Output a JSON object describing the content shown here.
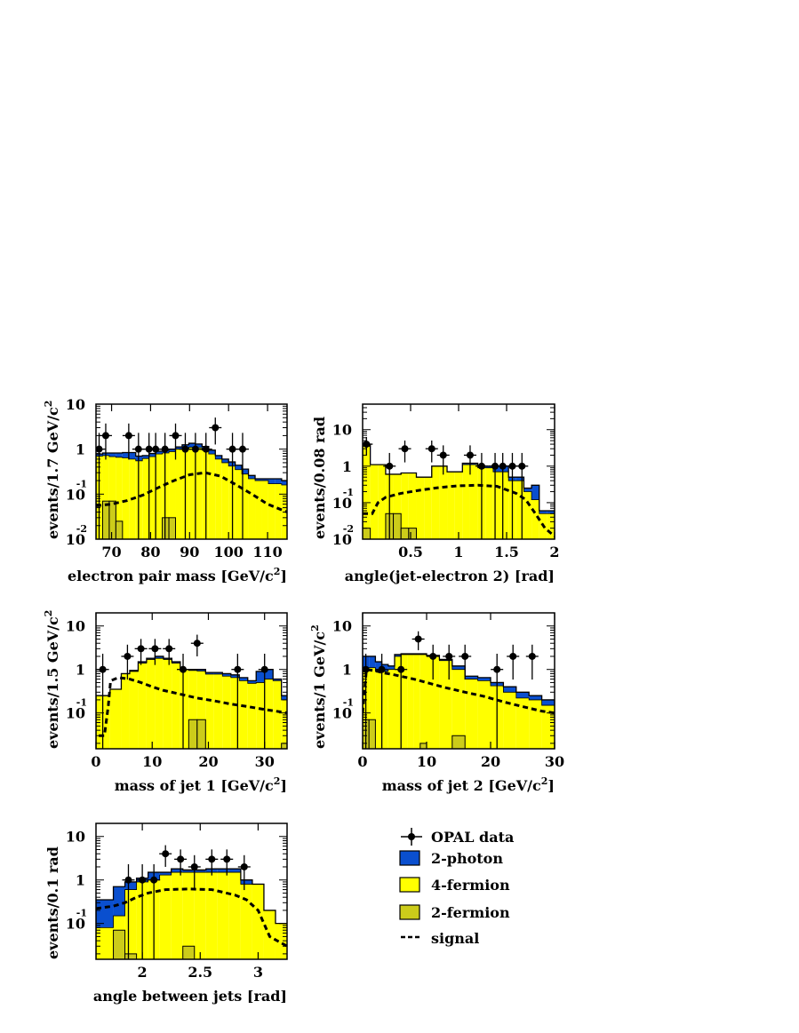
{
  "colors": {
    "two_photon": "#0a4fcf",
    "four_fermion": "#ffff00",
    "two_fermion": "#cccc1a",
    "signal": "#000000",
    "data": "#000000"
  },
  "legend": {
    "data": "OPAL data",
    "two_photon": "2-photon",
    "four_fermion": "4-fermion",
    "two_fermion": "2-fermion",
    "signal": "signal"
  },
  "chart_data": [
    {
      "type": "bar",
      "xlabel": "electron pair mass [GeV/c",
      "xlabel_sup": "2",
      "xlabel_end": "]",
      "ylabel": "events/1.7 GeV/c",
      "ylabel_sup": "2",
      "yscale": "log",
      "xlim": [
        66,
        115
      ],
      "ylim": [
        0.01,
        10
      ],
      "xticks": [
        70,
        80,
        90,
        100,
        110
      ],
      "xticklabels": [
        "70",
        "80",
        "90",
        "100",
        "110"
      ],
      "yticks": [
        {
          "v": 10,
          "m": "10",
          "e": ""
        },
        {
          "v": 1,
          "m": "1",
          "e": ""
        },
        {
          "v": 0.1,
          "m": "10",
          "e": "-1"
        },
        {
          "v": 0.01,
          "m": "10",
          "e": "-2"
        }
      ],
      "bin_edges": [
        66,
        67.7,
        69.4,
        71.1,
        72.8,
        74.5,
        76.2,
        77.9,
        79.6,
        81.3,
        83.0,
        84.7,
        86.4,
        88.1,
        89.8,
        91.5,
        93.2,
        94.9,
        96.6,
        98.3,
        100.0,
        101.7,
        103.4,
        105.1,
        106.8,
        108.5,
        110.2,
        111.9,
        113.6,
        115.3
      ],
      "four_fermion_top": [
        0.7,
        0.72,
        0.68,
        0.66,
        0.64,
        0.6,
        0.55,
        0.62,
        0.68,
        0.78,
        0.82,
        0.88,
        1.0,
        1.05,
        1.1,
        1.08,
        0.95,
        0.78,
        0.6,
        0.5,
        0.42,
        0.35,
        0.28,
        0.22,
        0.2,
        0.2,
        0.17,
        0.17,
        0.16
      ],
      "total_top": [
        0.78,
        0.82,
        0.82,
        0.82,
        0.84,
        0.84,
        0.7,
        0.72,
        0.8,
        0.9,
        0.95,
        1.0,
        1.12,
        1.25,
        1.35,
        1.3,
        1.15,
        0.95,
        0.72,
        0.6,
        0.52,
        0.44,
        0.36,
        0.26,
        0.22,
        0.22,
        0.22,
        0.22,
        0.2
      ],
      "two_fermion": [
        0,
        0.07,
        0.07,
        0.025,
        0,
        0,
        0,
        0,
        0,
        0,
        0.03,
        0.03,
        0,
        0,
        0,
        0,
        0,
        0,
        0,
        0,
        0,
        0,
        0,
        0,
        0,
        0,
        0,
        0,
        0
      ],
      "signal_x": [
        66,
        70,
        74,
        78,
        82,
        86,
        90,
        94,
        98,
        102,
        106,
        110,
        115
      ],
      "signal_y": [
        0.055,
        0.06,
        0.072,
        0.095,
        0.14,
        0.2,
        0.27,
        0.3,
        0.25,
        0.16,
        0.1,
        0.06,
        0.04
      ],
      "data_points": [
        {
          "x": 66.8,
          "y": 1
        },
        {
          "x": 68.5,
          "y": 2
        },
        {
          "x": 74.4,
          "y": 2
        },
        {
          "x": 76.9,
          "y": 1
        },
        {
          "x": 79.6,
          "y": 1
        },
        {
          "x": 81.3,
          "y": 1
        },
        {
          "x": 83.7,
          "y": 1
        },
        {
          "x": 86.4,
          "y": 2
        },
        {
          "x": 88.9,
          "y": 1
        },
        {
          "x": 91.5,
          "y": 1
        },
        {
          "x": 94.2,
          "y": 1
        },
        {
          "x": 96.6,
          "y": 3
        },
        {
          "x": 101.0,
          "y": 1
        },
        {
          "x": 103.6,
          "y": 1
        }
      ]
    },
    {
      "type": "bar",
      "xlabel": "angle(jet-electron 2) [rad]",
      "ylabel": "events/0.08 rad",
      "yscale": "log",
      "xlim": [
        0,
        2
      ],
      "ylim": [
        0.01,
        50
      ],
      "xticks": [
        0.5,
        1,
        1.5,
        2
      ],
      "xticklabels": [
        "0.5",
        "1",
        "1.5",
        "2"
      ],
      "yticks": [
        {
          "v": 10,
          "m": "10",
          "e": ""
        },
        {
          "v": 1,
          "m": "1",
          "e": ""
        },
        {
          "v": 0.1,
          "m": "10",
          "e": "-1"
        },
        {
          "v": 0.01,
          "m": "10",
          "e": "-2"
        }
      ],
      "bin_edges": [
        0,
        0.08,
        0.16,
        0.24,
        0.32,
        0.4,
        0.48,
        0.56,
        0.64,
        0.72,
        0.8,
        0.88,
        0.96,
        1.04,
        1.12,
        1.2,
        1.28,
        1.36,
        1.44,
        1.52,
        1.6,
        1.68,
        1.76,
        1.84,
        1.92,
        2.0
      ],
      "four_fermion_top": [
        3.5,
        1.1,
        1.1,
        0.6,
        0.6,
        0.65,
        0.65,
        0.5,
        0.5,
        1.0,
        1.0,
        0.7,
        0.7,
        1.1,
        1.1,
        0.9,
        0.9,
        0.7,
        0.7,
        0.4,
        0.4,
        0.2,
        0.12,
        0.05,
        0.05
      ],
      "total_top": [
        4.0,
        1.1,
        1.1,
        0.6,
        0.6,
        0.65,
        0.65,
        0.5,
        0.5,
        1.0,
        1.0,
        0.7,
        0.7,
        1.2,
        1.2,
        1.0,
        1.0,
        1.0,
        1.0,
        0.5,
        0.5,
        0.25,
        0.3,
        0.06,
        0.06
      ],
      "two_fermion": [
        0.02,
        0,
        0,
        0.05,
        0.05,
        0.02,
        0.02,
        0,
        0,
        0,
        0,
        0,
        0,
        0,
        0,
        0,
        0,
        0,
        0,
        0,
        0,
        0,
        0,
        0,
        0
      ],
      "signal_x": [
        0,
        0.1,
        0.16,
        0.24,
        0.4,
        0.6,
        0.8,
        1.0,
        1.2,
        1.4,
        1.6,
        1.7,
        1.8,
        1.9,
        2.0
      ],
      "signal_y": [
        0.05,
        0.05,
        0.1,
        0.14,
        0.18,
        0.22,
        0.26,
        0.29,
        0.3,
        0.28,
        0.18,
        0.12,
        0.05,
        0.02,
        0.012
      ],
      "data_points": [
        {
          "x": 0.04,
          "y": 4
        },
        {
          "x": 0.28,
          "y": 1
        },
        {
          "x": 0.44,
          "y": 3
        },
        {
          "x": 0.72,
          "y": 3
        },
        {
          "x": 0.84,
          "y": 2
        },
        {
          "x": 1.12,
          "y": 2
        },
        {
          "x": 1.24,
          "y": 1
        },
        {
          "x": 1.38,
          "y": 1
        },
        {
          "x": 1.46,
          "y": 1
        },
        {
          "x": 1.56,
          "y": 1
        },
        {
          "x": 1.66,
          "y": 1
        }
      ]
    },
    {
      "type": "bar",
      "xlabel": "mass of jet 1 [GeV/c",
      "xlabel_sup": "2",
      "xlabel_end": "]",
      "ylabel": "events/1.5 GeV/c",
      "ylabel_sup": "2",
      "yscale": "log",
      "xlim": [
        0,
        34
      ],
      "ylim": [
        0.015,
        20
      ],
      "xticks": [
        0,
        10,
        20,
        30
      ],
      "xticklabels": [
        "0",
        "10",
        "20",
        "30"
      ],
      "yticks": [
        {
          "v": 10,
          "m": "10",
          "e": ""
        },
        {
          "v": 1,
          "m": "1",
          "e": ""
        },
        {
          "v": 0.1,
          "m": "10",
          "e": "-1"
        }
      ],
      "bin_edges": [
        0,
        2.5,
        4.5,
        6.0,
        7.5,
        9.0,
        10.5,
        12.0,
        13.5,
        15.0,
        16.5,
        18.0,
        19.5,
        21.0,
        22.5,
        24.0,
        25.5,
        27.0,
        28.5,
        30.0,
        31.5,
        33.0,
        34.0
      ],
      "four_fermion_top": [
        0.25,
        0.35,
        0.8,
        0.9,
        1.4,
        1.7,
        1.8,
        1.7,
        1.4,
        1.0,
        0.95,
        0.92,
        0.78,
        0.78,
        0.7,
        0.65,
        0.55,
        0.48,
        0.5,
        0.6,
        0.55,
        0.2
      ],
      "total_top": [
        0.25,
        0.35,
        0.8,
        0.95,
        1.5,
        1.8,
        2.0,
        1.8,
        1.5,
        1.0,
        1.0,
        1.0,
        0.85,
        0.85,
        0.8,
        0.75,
        0.65,
        0.55,
        0.9,
        1.0,
        0.6,
        0.25
      ],
      "two_fermion": [
        0,
        0,
        0,
        0,
        0,
        0,
        0,
        0,
        0,
        0,
        0.07,
        0.07,
        0,
        0,
        0,
        0,
        0,
        0,
        0,
        0,
        0,
        0.02
      ],
      "signal_x": [
        0.5,
        1.5,
        2.2,
        2.6,
        4,
        6,
        8,
        10,
        12,
        15,
        18,
        21,
        24,
        27,
        30,
        32,
        34
      ],
      "signal_y": [
        0.03,
        0.03,
        0.15,
        0.55,
        0.65,
        0.6,
        0.5,
        0.4,
        0.33,
        0.27,
        0.22,
        0.19,
        0.16,
        0.14,
        0.12,
        0.11,
        0.1
      ],
      "data_points": [
        {
          "x": 1.2,
          "y": 1
        },
        {
          "x": 5.6,
          "y": 2
        },
        {
          "x": 8.0,
          "y": 3
        },
        {
          "x": 10.5,
          "y": 3
        },
        {
          "x": 13.0,
          "y": 3
        },
        {
          "x": 15.5,
          "y": 1
        },
        {
          "x": 18.0,
          "y": 4
        },
        {
          "x": 25.2,
          "y": 1
        },
        {
          "x": 30.0,
          "y": 1
        }
      ]
    },
    {
      "type": "bar",
      "xlabel": "mass of jet 2 [GeV/c",
      "xlabel_sup": "2",
      "xlabel_end": "]",
      "ylabel": "events/1 GeV/c",
      "ylabel_sup": "2",
      "yscale": "log",
      "xlim": [
        0,
        30
      ],
      "ylim": [
        0.015,
        20
      ],
      "xticks": [
        0,
        10,
        20,
        30
      ],
      "xticklabels": [
        "0",
        "10",
        "20",
        "30"
      ],
      "yticks": [
        {
          "v": 10,
          "m": "10",
          "e": ""
        },
        {
          "v": 1,
          "m": "1",
          "e": ""
        },
        {
          "v": 0.1,
          "m": "10",
          "e": "-1"
        }
      ],
      "bin_edges": [
        0,
        1,
        2,
        3,
        4,
        5,
        6,
        7,
        8,
        9,
        10,
        12,
        14,
        16,
        18,
        20,
        22,
        24,
        26,
        28,
        30
      ],
      "four_fermion_top": [
        1.1,
        1.1,
        0.9,
        0.9,
        1.0,
        2.0,
        2.2,
        2.2,
        2.2,
        2.2,
        2.0,
        1.6,
        1.0,
        0.6,
        0.55,
        0.42,
        0.3,
        0.22,
        0.2,
        0.15
      ],
      "total_top": [
        2.0,
        2.0,
        1.5,
        1.3,
        1.2,
        2.2,
        2.3,
        2.3,
        2.3,
        2.3,
        2.1,
        1.7,
        1.2,
        0.7,
        0.65,
        0.5,
        0.4,
        0.3,
        0.25,
        0.2
      ],
      "two_fermion": [
        0.07,
        0.07,
        0,
        0,
        0,
        0,
        0,
        0,
        0,
        0.02,
        0,
        0,
        0.03,
        0,
        0,
        0,
        0,
        0,
        0,
        0
      ],
      "signal_x": [
        0,
        0.6,
        1.5,
        2.4,
        3,
        5,
        8,
        10,
        13,
        16,
        19,
        22,
        25,
        28,
        30
      ],
      "signal_y": [
        0.1,
        1.0,
        0.95,
        0.9,
        0.85,
        0.75,
        0.6,
        0.5,
        0.38,
        0.3,
        0.24,
        0.18,
        0.14,
        0.11,
        0.1
      ],
      "data_points": [
        {
          "x": 0.5,
          "y": 1
        },
        {
          "x": 3.0,
          "y": 1
        },
        {
          "x": 6.0,
          "y": 1
        },
        {
          "x": 8.7,
          "y": 5
        },
        {
          "x": 11.0,
          "y": 2
        },
        {
          "x": 13.5,
          "y": 2
        },
        {
          "x": 16.0,
          "y": 2
        },
        {
          "x": 21.0,
          "y": 1
        },
        {
          "x": 23.5,
          "y": 2
        },
        {
          "x": 26.5,
          "y": 2
        }
      ]
    },
    {
      "type": "bar",
      "xlabel": "angle between jets [rad]",
      "ylabel": "events/0.1 rad",
      "yscale": "log",
      "xlim": [
        1.6,
        3.25
      ],
      "ylim": [
        0.015,
        20
      ],
      "xticks": [
        2,
        2.5,
        3
      ],
      "xticklabels": [
        "2",
        "2.5",
        "3"
      ],
      "yticks": [
        {
          "v": 10,
          "m": "10",
          "e": ""
        },
        {
          "v": 1,
          "m": "1",
          "e": ""
        },
        {
          "v": 0.1,
          "m": "10",
          "e": "-1"
        }
      ],
      "bin_edges": [
        1.6,
        1.75,
        1.85,
        1.95,
        2.05,
        2.15,
        2.25,
        2.35,
        2.45,
        2.55,
        2.65,
        2.75,
        2.85,
        2.95,
        3.05,
        3.15,
        3.25
      ],
      "four_fermion_top": [
        0.08,
        0.15,
        0.6,
        0.9,
        1.0,
        1.3,
        1.5,
        1.5,
        1.5,
        1.5,
        1.5,
        1.5,
        0.8,
        0.8,
        0.2,
        0.1
      ],
      "total_top": [
        0.35,
        0.7,
        0.9,
        1.1,
        1.5,
        1.5,
        1.8,
        1.7,
        1.7,
        1.8,
        1.8,
        1.8,
        1.0,
        0.8,
        0.2,
        0.1
      ],
      "two_fermion": [
        0,
        0.07,
        0.02,
        0,
        0,
        0,
        0,
        0.03,
        0,
        0,
        0,
        0,
        0,
        0,
        0,
        0
      ],
      "signal_x": [
        1.6,
        1.75,
        1.85,
        1.95,
        2.05,
        2.2,
        2.4,
        2.6,
        2.8,
        2.9,
        3.0,
        3.05,
        3.1,
        3.25
      ],
      "signal_y": [
        0.22,
        0.25,
        0.3,
        0.4,
        0.5,
        0.6,
        0.62,
        0.6,
        0.45,
        0.35,
        0.2,
        0.1,
        0.05,
        0.03
      ],
      "data_points": [
        {
          "x": 1.88,
          "y": 1
        },
        {
          "x": 2.0,
          "y": 1
        },
        {
          "x": 2.1,
          "y": 1
        },
        {
          "x": 2.2,
          "y": 4
        },
        {
          "x": 2.33,
          "y": 3
        },
        {
          "x": 2.45,
          "y": 2
        },
        {
          "x": 2.6,
          "y": 3
        },
        {
          "x": 2.73,
          "y": 3
        },
        {
          "x": 2.88,
          "y": 2
        }
      ]
    }
  ]
}
